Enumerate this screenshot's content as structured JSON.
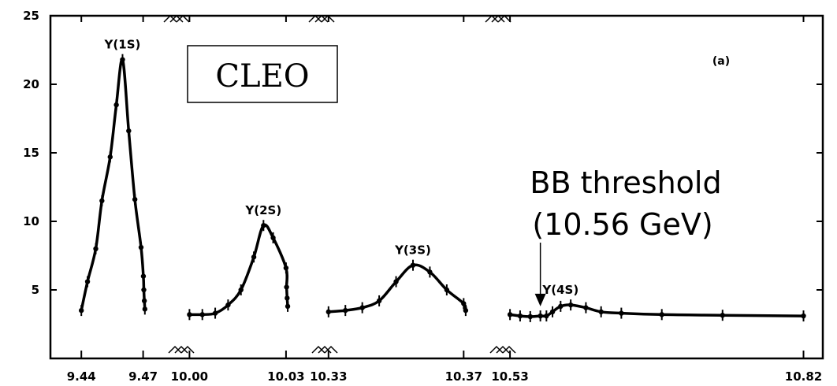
{
  "chart_data": {
    "type": "line",
    "title": "",
    "xlabel": "",
    "ylabel": "",
    "ylim": [
      0,
      25
    ],
    "grid": false,
    "y_ticks": [
      5,
      10,
      15,
      20,
      25
    ],
    "y_tick_labels": [
      "5",
      "10",
      "15",
      "20",
      "25"
    ],
    "x_tick_labels": [
      "9.44",
      "9.47",
      "10.00",
      "10.03",
      "10.33",
      "10.37",
      "10.53",
      "10.82"
    ],
    "x_tick_values": [
      9.44,
      9.47,
      10.0,
      10.03,
      10.33,
      10.37,
      10.53,
      10.82
    ],
    "x_axis": "broken",
    "annotations": {
      "experiment": "CLEO",
      "panel": "(a)",
      "threshold_line1": "BB threshold",
      "threshold_line2": "(10.56 GeV)",
      "threshold_energy": 10.56
    },
    "peaks": [
      {
        "label": "Υ(1S)",
        "x": 9.46,
        "y": 21.8
      },
      {
        "label": "Υ(2S)",
        "x": 10.023,
        "y": 9.7
      },
      {
        "label": "Υ(3S)",
        "x": 10.355,
        "y": 6.8
      },
      {
        "label": "Υ(4S)",
        "x": 10.58,
        "y": 3.9
      }
    ],
    "segments": [
      {
        "name": "Υ(1S) region",
        "x": [
          9.44,
          9.443,
          9.447,
          9.45,
          9.454,
          9.457,
          9.46,
          9.463,
          9.466,
          9.469,
          9.473,
          9.478,
          9.484,
          9.49
        ],
        "y": [
          3.5,
          5.6,
          8.0,
          11.5,
          14.7,
          18.5,
          21.8,
          16.6,
          11.6,
          8.1,
          6.0,
          5.0,
          4.2,
          3.6
        ]
      },
      {
        "name": "Υ(2S) region",
        "x": [
          10.0,
          10.004,
          10.008,
          10.012,
          10.016,
          10.02,
          10.023,
          10.026,
          10.03,
          10.034,
          10.038,
          10.042
        ],
        "y": [
          3.2,
          3.2,
          3.3,
          3.9,
          5.0,
          7.4,
          9.7,
          8.8,
          6.6,
          5.2,
          4.4,
          3.8
        ]
      },
      {
        "name": "Υ(3S) region",
        "x": [
          10.33,
          10.335,
          10.34,
          10.345,
          10.35,
          10.355,
          10.36,
          10.365,
          10.37,
          10.377
        ],
        "y": [
          3.4,
          3.5,
          3.7,
          4.2,
          5.6,
          6.8,
          6.3,
          5.0,
          4.0,
          3.5
        ]
      },
      {
        "name": "Υ(4S) region",
        "x": [
          10.53,
          10.54,
          10.55,
          10.56,
          10.566,
          10.572,
          10.58,
          10.59,
          10.605,
          10.62,
          10.64,
          10.68,
          10.74,
          10.82
        ],
        "y": [
          3.2,
          3.1,
          3.05,
          3.1,
          3.1,
          3.4,
          3.8,
          3.9,
          3.7,
          3.4,
          3.3,
          3.2,
          3.15,
          3.1
        ]
      }
    ]
  }
}
